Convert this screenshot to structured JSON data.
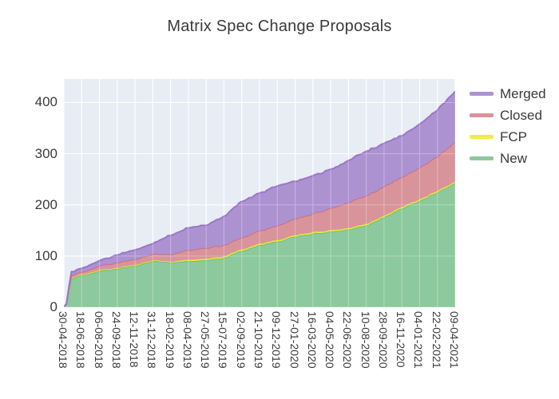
{
  "chart_data": {
    "type": "area",
    "stacked": true,
    "title": "Matrix Spec Change Proposals",
    "xlabel": "",
    "ylabel": "",
    "ylim": [
      0,
      446
    ],
    "yticks": [
      0,
      100,
      200,
      300,
      400
    ],
    "grid": true,
    "legend_position": "right-outside-top",
    "legend_items": [
      "Merged",
      "Closed",
      "FCP",
      "New"
    ],
    "plot_bg": "#e8ecf5",
    "grid_color": "#ffffff",
    "text_color": "#3b3b3b",
    "categories": [
      "30-04-2018",
      "18-06-2018",
      "06-08-2018",
      "24-09-2018",
      "12-11-2018",
      "31-12-2018",
      "18-02-2019",
      "08-04-2019",
      "27-05-2019",
      "15-07-2019",
      "02-09-2019",
      "21-10-2019",
      "09-12-2019",
      "27-01-2020",
      "16-03-2020",
      "04-05-2020",
      "22-06-2020",
      "10-08-2020",
      "28-09-2020",
      "16-11-2020",
      "04-01-2021",
      "22-02-2021",
      "09-04-2021"
    ],
    "series": [
      {
        "name": "New",
        "fill": "#8cc99d",
        "edge": "#62b97c",
        "values": [
          1,
          62,
          71,
          75,
          81,
          90,
          87,
          90,
          92,
          97,
          110,
          122,
          128,
          138,
          144,
          148,
          152,
          160,
          176,
          193,
          208,
          224,
          243
        ]
      },
      {
        "name": "FCP",
        "fill": "#f2eb4a",
        "edge": "#d9d235",
        "values": [
          0,
          2,
          2,
          2,
          2,
          2,
          2,
          3,
          3,
          3,
          3,
          3,
          3,
          3,
          3,
          3,
          3,
          3,
          3,
          3,
          3,
          3,
          3
        ]
      },
      {
        "name": "Closed",
        "fill": "#d9939b",
        "edge": "#cb6f7c",
        "values": [
          0,
          5,
          8,
          10,
          11,
          12,
          14,
          19,
          21,
          22,
          23,
          25,
          28,
          32,
          36,
          43,
          50,
          55,
          57,
          58,
          62,
          67,
          78
        ]
      },
      {
        "name": "Merged",
        "fill": "#ad92d2",
        "edge": "#9a77c6",
        "values": [
          0,
          7,
          10,
          15,
          18,
          20,
          37,
          43,
          44,
          56,
          71,
          73,
          78,
          73,
          74,
          76,
          82,
          87,
          84,
          81,
          85,
          91,
          98
        ]
      }
    ]
  }
}
